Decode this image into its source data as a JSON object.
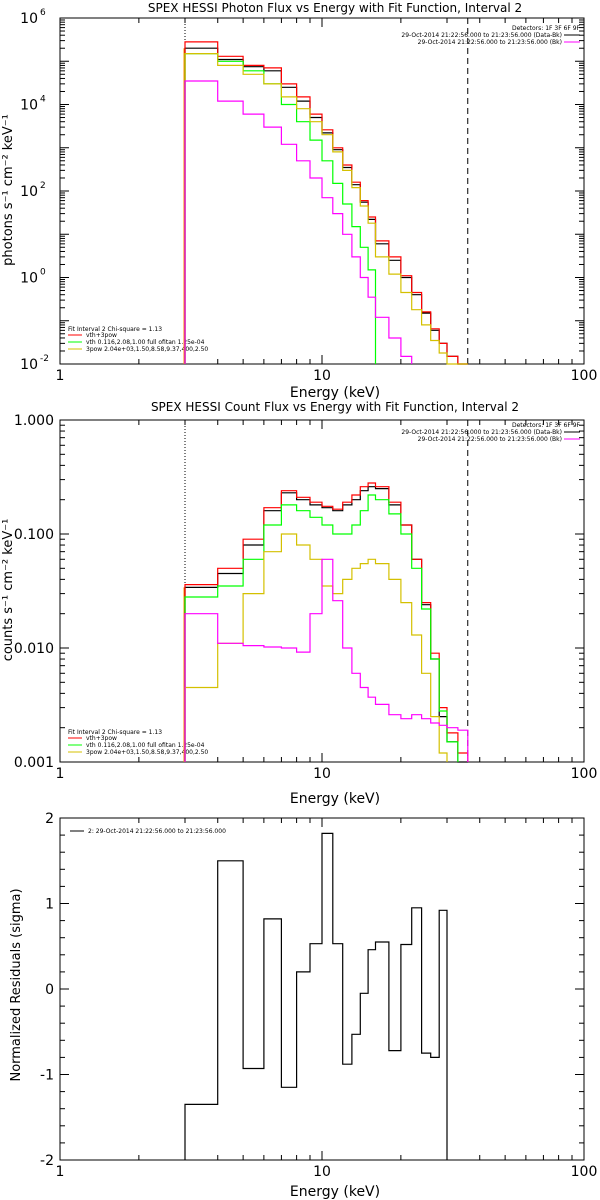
{
  "panels": [
    {
      "id": "photon",
      "title": "SPEX HESSI Photon Flux vs Energy with Fit Function, Interval 2",
      "xlabel": "Energy (keV)",
      "ylabel": "photons s⁻¹ cm⁻² keV⁻¹",
      "xticks": [
        "1",
        "10",
        "100"
      ],
      "yticks": [
        {
          "value": 1000000.0,
          "base": "10",
          "exp": "6"
        },
        {
          "value": 10000.0,
          "base": "10",
          "exp": "4"
        },
        {
          "value": 100.0,
          "base": "10",
          "exp": "2"
        },
        {
          "value": 1.0,
          "base": "10",
          "exp": "0"
        },
        {
          "value": 0.01,
          "base": "10",
          "exp": "-2"
        }
      ],
      "header": [
        "Detectors: 1F 3F 6F 9F",
        "29-Oct-2014 21:22:56.000 to 21:23:56.000 (Data-Bk)",
        "29-Oct-2014 21:22:56.000 to 21:23:56.000 (Bk)"
      ],
      "fit_legend": [
        "Fit Interval 2   Chi-square = 1.13",
        "vth+3pow",
        "vth 0.116,2.08,1.00  full ofitan 1.25e-04",
        "3pow 2.04e+03,1.50,8.58,9.37,400,2.50"
      ]
    },
    {
      "id": "count",
      "title": "SPEX HESSI Count Flux vs Energy with Fit Function, Interval 2",
      "xlabel": "Energy (keV)",
      "ylabel": "counts s⁻¹ cm⁻² keV⁻¹",
      "xticks": [
        "1",
        "10",
        "100"
      ],
      "yticks": [
        {
          "value": 1,
          "label": "1.000"
        },
        {
          "value": 0.1,
          "label": "0.100"
        },
        {
          "value": 0.01,
          "label": "0.010"
        },
        {
          "value": 0.001,
          "label": "0.001"
        }
      ],
      "header": [
        "Detectors: 1F 3F 6F 9F",
        "29-Oct-2014 21:22:56.000 to 21:23:56.000 (Data-Bk)",
        "29-Oct-2014 21:22:56.000 to 21:23:56.000 (Bk)"
      ],
      "fit_legend": [
        "Fit Interval 2   Chi-square = 1.13",
        "vth+3pow",
        "vth 0.116,2.08,1.00  full ofitan 1.25e-04",
        "3pow 2.04e+03,1.50,8.58,9.37,400,2.50"
      ]
    },
    {
      "id": "residuals",
      "xlabel": "Energy (keV)",
      "ylabel": "Normalized Residuals (sigma)",
      "xticks": [
        "1",
        "10",
        "100"
      ],
      "yticks": [
        {
          "value": 2,
          "label": "2"
        },
        {
          "value": 1,
          "label": "1"
        },
        {
          "value": 0,
          "label": "0"
        },
        {
          "value": -1,
          "label": "-1"
        },
        {
          "value": -2,
          "label": "-2"
        }
      ],
      "legend": "2: 29-Oct-2014 21:22:56.000 to 21:23:56.000"
    }
  ],
  "colors": {
    "data": "#000000",
    "total_fit": "#ff0000",
    "vth": "#00ff00",
    "pow": "#d4c000",
    "background": "#ff00ff",
    "marker_low": "#ff8c00"
  },
  "chart_data": [
    {
      "type": "line",
      "title": "SPEX HESSI Photon Flux vs Energy with Fit Function, Interval 2",
      "xlabel": "Energy (keV)",
      "ylabel": "photons s-1 cm-2 keV-1",
      "xscale": "log",
      "yscale": "log",
      "xlim": [
        1,
        100
      ],
      "ylim": [
        0.01,
        1000000
      ],
      "grid": false,
      "legend_position": "top-right and bottom-left",
      "bin_edges": [
        3,
        4,
        5,
        6,
        7,
        8,
        9,
        10,
        11,
        12,
        13,
        14,
        15,
        16,
        18,
        20,
        22,
        24,
        26,
        28,
        30,
        33,
        36
      ],
      "series": [
        {
          "name": "Data-Bk",
          "color": "#000000",
          "values": [
            200000,
            110000,
            75000,
            60000,
            25000,
            12000,
            5000,
            2200,
            900,
            350,
            140,
            55,
            22,
            6,
            2.5,
            1.0,
            0.4,
            0.15,
            0.06,
            0.03,
            0.015,
            0.009
          ]
        },
        {
          "name": "vth+3pow",
          "color": "#ff0000",
          "values": [
            280000,
            130000,
            80000,
            70000,
            30000,
            15000,
            6000,
            2600,
            1000,
            400,
            160,
            60,
            25,
            7,
            3,
            1.1,
            0.45,
            0.16,
            0.065,
            0.03,
            0.015,
            0.008
          ]
        },
        {
          "name": "vth",
          "color": "#00ff00",
          "values": [
            150000,
            100000,
            60000,
            30000,
            10000,
            4000,
            1500,
            500,
            150,
            50,
            15,
            5,
            1.5
          ]
        },
        {
          "name": "3pow",
          "color": "#d4c000",
          "values": [
            150000,
            80000,
            50000,
            30000,
            15000,
            8000,
            4000,
            2000,
            800,
            300,
            120,
            45,
            18,
            3,
            1.2,
            0.45,
            0.18,
            0.08,
            0.035,
            0.018,
            0.009,
            0.005
          ]
        },
        {
          "name": "Bk",
          "color": "#ff00ff",
          "values": [
            35000,
            12000,
            6000,
            3000,
            1200,
            500,
            200,
            70,
            30,
            10,
            3,
            1,
            0.35,
            0.12,
            0.04,
            0.015
          ]
        }
      ]
    },
    {
      "type": "line",
      "title": "SPEX HESSI Count Flux vs Energy with Fit Function, Interval 2",
      "xlabel": "Energy (keV)",
      "ylabel": "counts s-1 cm-2 keV-1",
      "xscale": "log",
      "yscale": "log",
      "xlim": [
        1,
        100
      ],
      "ylim": [
        0.001,
        1
      ],
      "grid": false,
      "legend_position": "top-right and bottom-left",
      "bin_edges": [
        3,
        4,
        5,
        6,
        7,
        8,
        9,
        10,
        11,
        12,
        13,
        14,
        15,
        16,
        18,
        20,
        22,
        24,
        26,
        28,
        30,
        33,
        36
      ],
      "series": [
        {
          "name": "Data-Bk",
          "color": "#000000",
          "values": [
            0.034,
            0.045,
            0.08,
            0.16,
            0.23,
            0.2,
            0.18,
            0.17,
            0.16,
            0.18,
            0.2,
            0.24,
            0.26,
            0.25,
            0.18,
            0.12,
            0.06,
            0.024,
            0.008,
            0.0025,
            0.0015,
            0.001
          ]
        },
        {
          "name": "vth+3pow",
          "color": "#ff0000",
          "values": [
            0.036,
            0.05,
            0.09,
            0.17,
            0.24,
            0.21,
            0.19,
            0.175,
            0.165,
            0.19,
            0.22,
            0.26,
            0.28,
            0.26,
            0.19,
            0.12,
            0.06,
            0.025,
            0.009,
            0.003,
            0.0018,
            0.0012
          ]
        },
        {
          "name": "vth",
          "color": "#00ff00",
          "values": [
            0.028,
            0.035,
            0.06,
            0.12,
            0.18,
            0.16,
            0.14,
            0.12,
            0.1,
            0.1,
            0.12,
            0.16,
            0.22,
            0.2,
            0.15,
            0.1,
            0.05,
            0.022,
            0.008,
            0.0028,
            0.0015
          ]
        },
        {
          "name": "3pow",
          "color": "#d4c000",
          "values": [
            0.0045,
            0.011,
            0.03,
            0.07,
            0.1,
            0.08,
            0.06,
            0.035,
            0.03,
            0.04,
            0.05,
            0.055,
            0.06,
            0.055,
            0.04,
            0.025,
            0.013,
            0.006,
            0.0025,
            0.0012
          ]
        },
        {
          "name": "Bk",
          "color": "#ff00ff",
          "values": [
            0.02,
            0.011,
            0.0105,
            0.0102,
            0.01,
            0.0092,
            0.02,
            0.06,
            0.026,
            0.01,
            0.006,
            0.0045,
            0.0037,
            0.0032,
            0.0026,
            0.0024,
            0.0026,
            0.0024,
            0.0022,
            0.0021,
            0.002,
            0.0019
          ]
        }
      ]
    },
    {
      "type": "line",
      "xlabel": "Energy (keV)",
      "ylabel": "Normalized Residuals (sigma)",
      "xscale": "log",
      "xlim": [
        1,
        100
      ],
      "ylim": [
        -2,
        2
      ],
      "grid": false,
      "legend_position": "top-left",
      "bin_edges": [
        3,
        4,
        5,
        6,
        7,
        8,
        9,
        10,
        11,
        12,
        13,
        14,
        15,
        16,
        18,
        20,
        22,
        24,
        26,
        28,
        30,
        33,
        36
      ],
      "series": [
        {
          "name": "2: 29-Oct-2014 21:22:56.000 to 21:23:56.000",
          "color": "#000000",
          "values": [
            -1.35,
            1.5,
            -0.93,
            0.82,
            -1.15,
            0.2,
            0.53,
            1.82,
            0.53,
            -0.88,
            -0.53,
            -0.05,
            0.46,
            0.55,
            -0.72,
            0.52,
            0.95,
            -0.75,
            -0.8,
            0.92
          ]
        }
      ]
    }
  ]
}
